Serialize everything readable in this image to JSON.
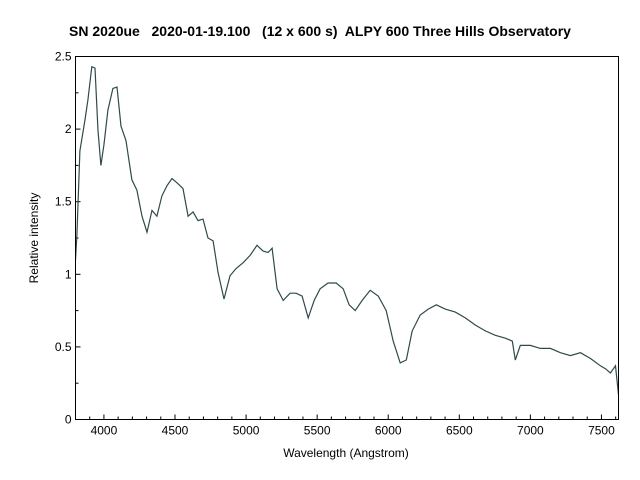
{
  "chart_data": {
    "type": "line",
    "title": "SN 2020ue   2020-01-19.100   (12 x 600 s)  ALPY 600 Three Hills Observatory",
    "xlabel": "Wavelength (Angstrom)",
    "ylabel": "Relative intensity",
    "xlim": [
      3800,
      7620
    ],
    "ylim": [
      0,
      2.5
    ],
    "xticks": [
      4000,
      4500,
      5000,
      5500,
      6000,
      6500,
      7000,
      7500
    ],
    "yticks": [
      0,
      0.5,
      1,
      1.5,
      2,
      2.5
    ],
    "ytick_labels": [
      "0",
      "0.5",
      "1",
      "1.5",
      "2",
      "2.5"
    ],
    "grid": false,
    "line_color": "#2f4a4a",
    "series": [
      {
        "x": [
          3800,
          3810,
          3831,
          3866,
          3887,
          3915,
          3937,
          3958,
          3979,
          4000,
          4028,
          4063,
          4092,
          4120,
          4155,
          4197,
          4232,
          4268,
          4303,
          4338,
          4373,
          4408,
          4444,
          4479,
          4514,
          4556,
          4592,
          4627,
          4662,
          4697,
          4732,
          4768,
          4803,
          4845,
          4887,
          4930,
          4979,
          5028,
          5077,
          5120,
          5155,
          5183,
          5218,
          5261,
          5310,
          5352,
          5394,
          5437,
          5479,
          5521,
          5577,
          5634,
          5683,
          5725,
          5768,
          5817,
          5873,
          5930,
          5986,
          6035,
          6084,
          6127,
          6169,
          6225,
          6282,
          6338,
          6401,
          6472,
          6542,
          6613,
          6683,
          6753,
          6824,
          6873,
          6894,
          6929,
          7000,
          7070,
          7141,
          7211,
          7282,
          7352,
          7423,
          7493,
          7528,
          7563,
          7599,
          7620
        ],
        "y": [
          1.1,
          1.27,
          1.85,
          2.06,
          2.2,
          2.43,
          2.42,
          1.99,
          1.75,
          1.89,
          2.13,
          2.28,
          2.29,
          2.02,
          1.92,
          1.65,
          1.58,
          1.4,
          1.29,
          1.44,
          1.4,
          1.54,
          1.61,
          1.66,
          1.63,
          1.59,
          1.4,
          1.43,
          1.37,
          1.38,
          1.25,
          1.23,
          1.01,
          0.83,
          0.99,
          1.04,
          1.08,
          1.13,
          1.2,
          1.16,
          1.15,
          1.18,
          0.9,
          0.82,
          0.87,
          0.87,
          0.85,
          0.7,
          0.82,
          0.9,
          0.94,
          0.94,
          0.9,
          0.79,
          0.75,
          0.82,
          0.89,
          0.85,
          0.75,
          0.54,
          0.39,
          0.41,
          0.61,
          0.72,
          0.76,
          0.79,
          0.76,
          0.74,
          0.7,
          0.65,
          0.61,
          0.58,
          0.56,
          0.54,
          0.41,
          0.51,
          0.51,
          0.49,
          0.49,
          0.46,
          0.44,
          0.46,
          0.42,
          0.37,
          0.35,
          0.32,
          0.37,
          0.17
        ]
      }
    ]
  }
}
